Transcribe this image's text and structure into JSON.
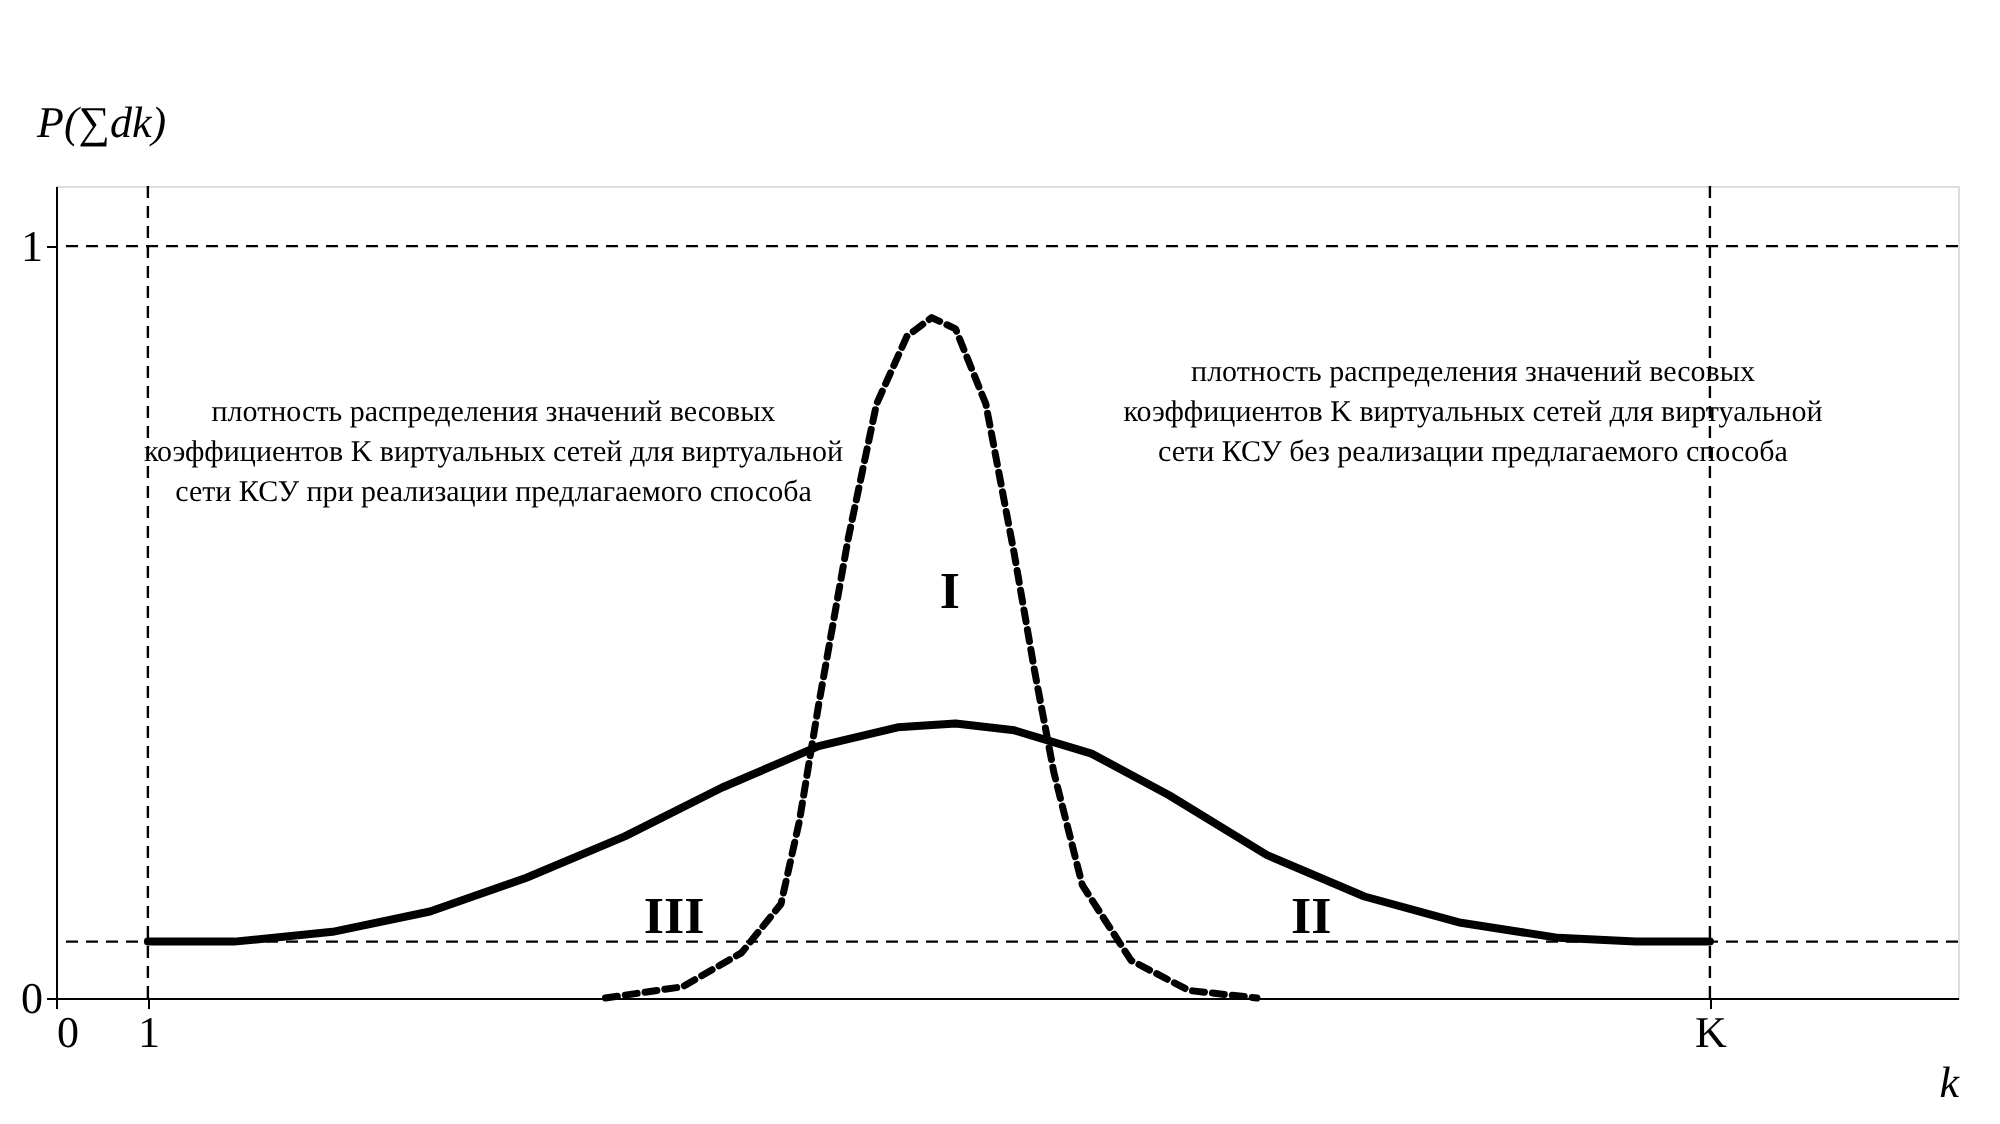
{
  "chart_data": {
    "type": "line",
    "xlabel": "k",
    "ylabel": "P(∑dk)",
    "xlim": [
      0,
      20.7
    ],
    "ylim": [
      0,
      1.08
    ],
    "xticks": [
      0,
      1,
      {
        "value": 18,
        "label": "K"
      }
    ],
    "yticks": [
      0,
      1
    ],
    "marker": "none",
    "series": [
      {
        "color": "#000000",
        "line_style": "solid",
        "x": [
          1,
          1.94,
          3.01,
          4.07,
          5.12,
          6.19,
          7.25,
          8.3,
          9.16,
          9.79,
          10.43,
          11.27,
          12.11,
          13.18,
          14.24,
          15.29,
          16.35,
          17.19,
          18
        ],
        "values": [
          0.075,
          0.075,
          0.088,
          0.115,
          0.16,
          0.215,
          0.28,
          0.335,
          0.36,
          0.365,
          0.356,
          0.325,
          0.27,
          0.19,
          0.135,
          0.1,
          0.08,
          0.075,
          0.075
        ]
      },
      {
        "color": "#000000",
        "line_style": "dashed",
        "x": [
          5.98,
          6.82,
          7.46,
          7.89,
          8.09,
          8.3,
          8.62,
          8.93,
          9.26,
          9.53,
          9.79,
          10.12,
          10.43,
          10.65,
          10.86,
          11.17,
          11.7,
          12.33,
          13.07
        ],
        "values": [
          0,
          0.015,
          0.06,
          0.125,
          0.235,
          0.39,
          0.61,
          0.79,
          0.88,
          0.905,
          0.89,
          0.79,
          0.59,
          0.435,
          0.3,
          0.15,
          0.05,
          0.01,
          0
        ]
      }
    ],
    "ref_lines": [
      {
        "axis": "y",
        "value": 1,
        "line_style": "dashed"
      },
      {
        "axis": "y",
        "value": 0.075,
        "line_style": "dashed"
      },
      {
        "axis": "x",
        "value": 1,
        "line_style": "dashed"
      },
      {
        "axis": "x",
        "value": 18,
        "line_style": "dashed"
      }
    ],
    "annotations": [
      "I",
      "II",
      "III",
      "плотность распределения значений весовых\nкоэффициентов K виртуальных сетей для виртуальной\nсети КСУ при реализации предлагаемого способа",
      "плотность распределения значений весовых\nкоэффициентов K виртуальных сетей для виртуальной\nсети КСУ без реализации предлагаемого способа"
    ]
  }
}
